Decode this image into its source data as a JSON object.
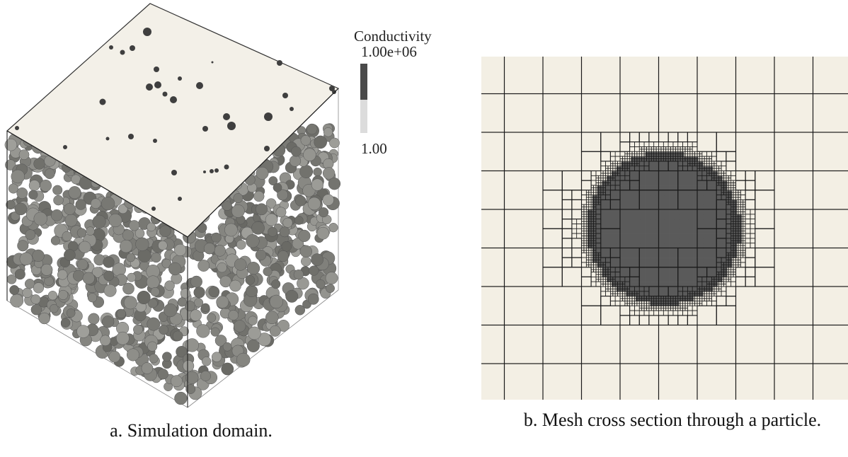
{
  "legend": {
    "title": "Conductivity",
    "max_label": "1.00e+06",
    "min_label": "1.00",
    "high_color": "#4a4a4a",
    "low_color": "#dcdcdc"
  },
  "captions": {
    "a": "a. Simulation domain.",
    "b": "b. Mesh cross section through a particle."
  },
  "colors": {
    "box_top": "#f3f0e8",
    "particle": "#8a8a8a",
    "particle_dark": "#3f3f3f",
    "mesh_bg": "#f3efe4",
    "mesh_line": "#1a1a1a",
    "mesh_particle": "#5a5a5a"
  }
}
